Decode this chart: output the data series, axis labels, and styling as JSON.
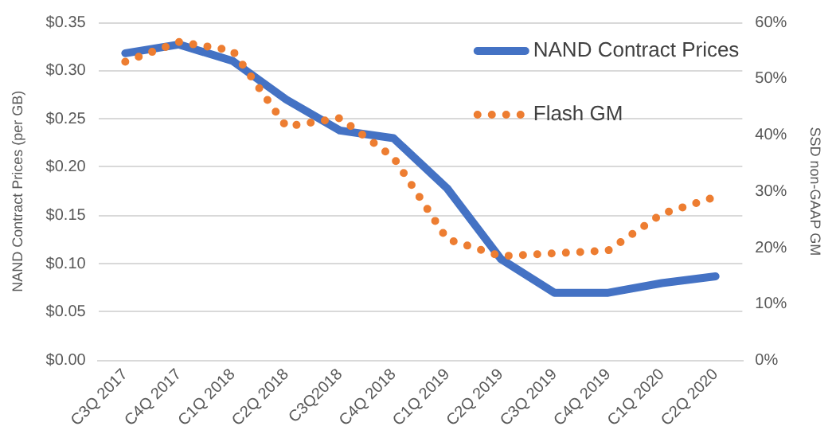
{
  "chart_data": {
    "type": "line",
    "ylabel": "NAND Contract Prices (per GB)",
    "y2label": "SSD non-GAAP GM",
    "categories": [
      "C3Q 2017",
      "C4Q 2017",
      "C1Q 2018",
      "C2Q 2018",
      "C3Q2018",
      "C4Q 2018",
      "C1Q 2019",
      "C2Q 2019",
      "C3Q 2019",
      "C4Q 2019",
      "C1Q 2020",
      "C2Q 2020"
    ],
    "series": [
      {
        "name": "NAND Contract Prices",
        "color": "#4472c4",
        "line_style": "solid",
        "values": [
          0.318,
          0.327,
          0.31,
          0.27,
          0.238,
          0.23,
          0.178,
          0.105,
          0.07,
          0.07,
          0.08,
          0.087
        ]
      },
      {
        "name": "Flash GM",
        "color": "#ed7d31",
        "line_style": "dotted",
        "axis": "y2",
        "values": [
          53,
          56.5,
          55,
          41.5,
          43,
          36,
          21.5,
          18.5,
          19,
          19.5,
          26,
          29
        ]
      }
    ],
    "ylim": [
      0,
      0.35
    ],
    "yticks": [
      {
        "value": 0,
        "label": "$0.00"
      },
      {
        "value": 0.05,
        "label": "$0.05"
      },
      {
        "value": 0.1,
        "label": "$0.10"
      },
      {
        "value": 0.15,
        "label": "$0.15"
      },
      {
        "value": 0.2,
        "label": "$0.20"
      },
      {
        "value": 0.25,
        "label": "$0.25"
      },
      {
        "value": 0.3,
        "label": "$0.30"
      },
      {
        "value": 0.35,
        "label": "$0.35"
      }
    ],
    "y2lim": [
      0,
      60
    ],
    "y2ticks": [
      {
        "value": 0,
        "label": "0%"
      },
      {
        "value": 10,
        "label": "10%"
      },
      {
        "value": 20,
        "label": "20%"
      },
      {
        "value": 30,
        "label": "30%"
      },
      {
        "value": 40,
        "label": "40%"
      },
      {
        "value": 50,
        "label": "50%"
      },
      {
        "value": 60,
        "label": "60%"
      }
    ],
    "grid": "y",
    "legend": "top right",
    "marker": "none"
  }
}
